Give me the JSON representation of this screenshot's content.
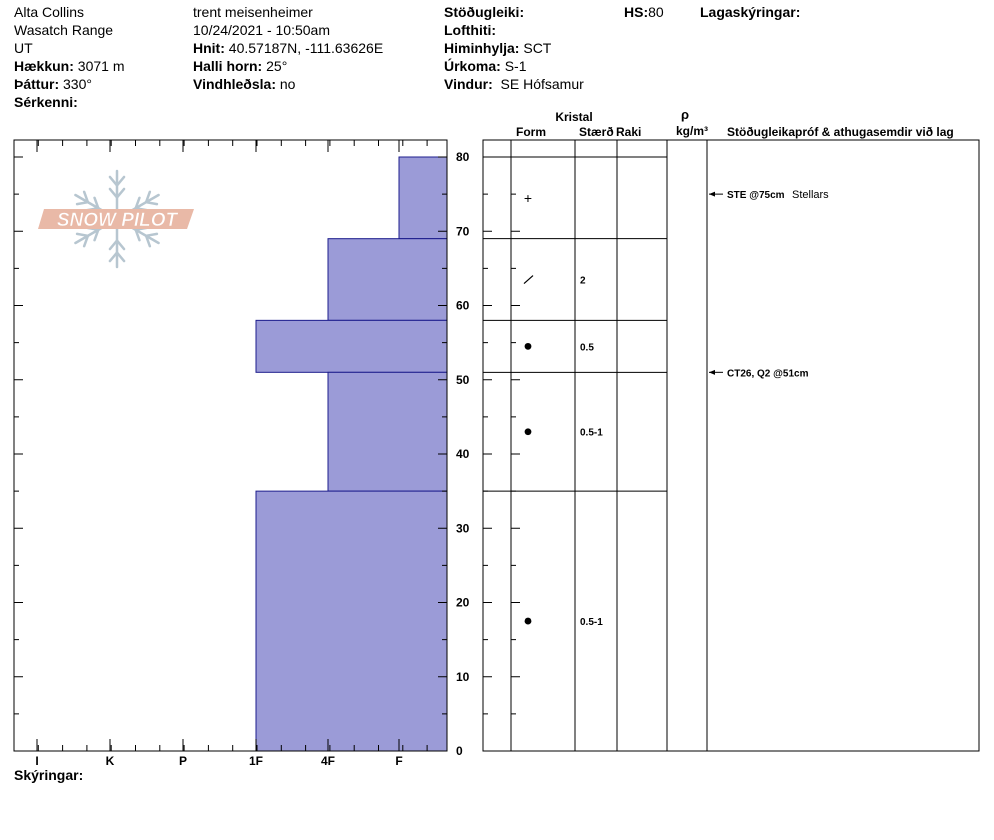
{
  "header": {
    "location": "Alta Collins",
    "range": "Wasatch Range",
    "state": "UT",
    "elevation_label": "Hækkun:",
    "elevation_value": "3071 m",
    "aspect_label": "Þáttur:",
    "aspect_value": "330°",
    "features_label": "Sérkenni:",
    "observer": "trent meisenheimer",
    "datetime": "10/24/2021 - 10:50am",
    "coords_label": "Hnit:",
    "coords_value": "40.57187N, -111.63626E",
    "slope_label": "Halli horn:",
    "slope_value": "25°",
    "wind_loading_label": "Vindhleðsla:",
    "wind_loading_value": "no",
    "stability_label": "Stöðugleiki:",
    "air_temp_label": "Lofthiti:",
    "sky_label": "Himinhylja:",
    "sky_value": "SCT",
    "precip_label": "Úrkoma:",
    "precip_value": "S-1",
    "wind_label": "Vindur:",
    "wind_value": "SE Hófsamur",
    "hs_label": "HS:",
    "hs_value": "80",
    "layer_notes_label": "Lagaskýringar:"
  },
  "logo": {
    "text": "SNOW PILOT"
  },
  "columns": {
    "crystal": "Kristal",
    "form": "Form",
    "size": "Stærð",
    "moisture": "Raki",
    "rho": "ρ",
    "density_unit": "kg/m³",
    "tests": "Stöðugleikapróf & athugasemdir við lag"
  },
  "footer": {
    "notes_label": "Skýringar:"
  },
  "chart_data": {
    "type": "bar",
    "orientation": "horizontal",
    "ylim": [
      0,
      82
    ],
    "y_ticks": [
      0,
      10,
      20,
      30,
      40,
      50,
      60,
      70,
      80
    ],
    "hardness_scale": [
      "I",
      "K",
      "P",
      "1F",
      "4F",
      "F"
    ],
    "layers": [
      {
        "top": 80,
        "bottom": 69,
        "hardness": "F",
        "form": "+",
        "size": ""
      },
      {
        "top": 69,
        "bottom": 58,
        "hardness": "4F",
        "form": "/",
        "size": "2"
      },
      {
        "top": 58,
        "bottom": 51,
        "hardness": "1F",
        "form": "●",
        "size": "0.5"
      },
      {
        "top": 51,
        "bottom": 35,
        "hardness": "4F",
        "form": "●",
        "size": "0.5-1"
      },
      {
        "top": 35,
        "bottom": 0,
        "hardness": "1F",
        "form": "●",
        "size": "0.5-1"
      }
    ],
    "tests": [
      {
        "depth": 75,
        "label": "STE @75cm",
        "note": "Stellars"
      },
      {
        "depth": 51,
        "label": "CT26, Q2 @51cm",
        "note": ""
      }
    ],
    "colors": {
      "bar_fill": "#9b9bd7",
      "bar_stroke": "#1c1c8c",
      "logo": "#e9b9a7",
      "flake": "#b7c6d0"
    }
  }
}
